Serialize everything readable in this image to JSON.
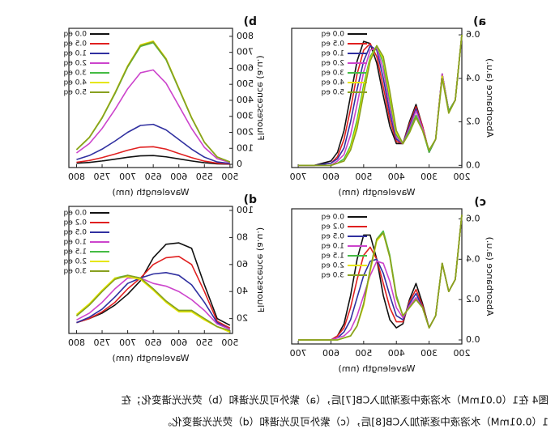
{
  "chart_data": [
    {
      "type": "line",
      "label": "a)",
      "xlabel": "Wavelength (nm)",
      "ylabel": "Absorbance (a.u.)",
      "x": [
        200,
        220,
        240,
        260,
        280,
        300,
        320,
        340,
        360,
        380,
        400,
        420,
        440,
        460,
        480,
        500,
        520,
        540,
        560,
        580,
        600,
        650,
        700
      ],
      "xlim": [
        200,
        720
      ],
      "ylim": [
        -0.01,
        0.63
      ],
      "xticks": [
        200,
        300,
        400,
        500,
        600,
        700
      ],
      "yticks": [
        {
          "value": 0,
          "label": "0.0"
        },
        0.2,
        0.4,
        0.6
      ],
      "series": [
        {
          "name": "0.0 eq",
          "color": "#111111",
          "values": [
            0.6,
            0.3,
            0.25,
            0.42,
            0.12,
            0.06,
            0.18,
            0.28,
            0.2,
            0.1,
            0.1,
            0.18,
            0.32,
            0.47,
            0.56,
            0.57,
            0.48,
            0.32,
            0.16,
            0.06,
            0.02,
            0,
            0
          ]
        },
        {
          "name": "0.5 eq",
          "color": "#e02020",
          "values": [
            0.6,
            0.3,
            0.25,
            0.42,
            0.12,
            0.06,
            0.18,
            0.27,
            0.19,
            0.1,
            0.11,
            0.21,
            0.36,
            0.5,
            0.56,
            0.53,
            0.42,
            0.26,
            0.12,
            0.04,
            0.01,
            0,
            0
          ]
        },
        {
          "name": "1.0 eq",
          "color": "#3030a0",
          "values": [
            0.6,
            0.3,
            0.25,
            0.42,
            0.12,
            0.06,
            0.17,
            0.26,
            0.18,
            0.1,
            0.12,
            0.24,
            0.4,
            0.53,
            0.55,
            0.48,
            0.35,
            0.2,
            0.08,
            0.03,
            0.01,
            0,
            0
          ]
        },
        {
          "name": "2.0 eq",
          "color": "#cc44cc",
          "values": [
            0.6,
            0.3,
            0.25,
            0.42,
            0.12,
            0.06,
            0.17,
            0.25,
            0.17,
            0.1,
            0.13,
            0.27,
            0.44,
            0.54,
            0.53,
            0.43,
            0.28,
            0.14,
            0.05,
            0.02,
            0,
            0,
            0
          ]
        },
        {
          "name": "3.0 eq",
          "color": "#44bb44",
          "values": [
            0.6,
            0.3,
            0.25,
            0.41,
            0.12,
            0.06,
            0.16,
            0.23,
            0.16,
            0.1,
            0.14,
            0.3,
            0.47,
            0.55,
            0.5,
            0.37,
            0.21,
            0.09,
            0.03,
            0.01,
            0,
            0,
            0
          ]
        },
        {
          "name": "4.0 eq",
          "color": "#e6e600",
          "values": [
            0.6,
            0.3,
            0.24,
            0.41,
            0.12,
            0.07,
            0.16,
            0.22,
            0.15,
            0.1,
            0.15,
            0.32,
            0.49,
            0.55,
            0.49,
            0.35,
            0.19,
            0.08,
            0.02,
            0.01,
            0,
            0,
            0
          ]
        },
        {
          "name": "5.0 eq",
          "color": "#88a020",
          "values": [
            0.6,
            0.3,
            0.24,
            0.4,
            0.12,
            0.07,
            0.16,
            0.22,
            0.15,
            0.1,
            0.16,
            0.34,
            0.5,
            0.55,
            0.48,
            0.33,
            0.17,
            0.07,
            0.02,
            0.01,
            0,
            0,
            0
          ]
        }
      ]
    },
    {
      "type": "line",
      "label": "b)",
      "xlabel": "Wavelength (nm)",
      "ylabel": "Fluorescence (a.u.)",
      "x": [
        500,
        525,
        550,
        575,
        600,
        625,
        650,
        675,
        700,
        725,
        750,
        775,
        800
      ],
      "xlim": [
        495,
        815
      ],
      "ylim": [
        -20,
        850
      ],
      "xticks": [
        500,
        550,
        600,
        650,
        700,
        750,
        800
      ],
      "yticks": [
        0,
        100,
        200,
        300,
        400,
        500,
        600,
        700,
        800
      ],
      "series": [
        {
          "name": "0.0 eq",
          "color": "#111111",
          "values": [
            1,
            3,
            10,
            21,
            34,
            47,
            55,
            53,
            44,
            32,
            21,
            12,
            7
          ]
        },
        {
          "name": "0.5 eq",
          "color": "#e02020",
          "values": [
            2,
            7,
            20,
            42,
            68,
            95,
            110,
            107,
            88,
            64,
            42,
            24,
            13
          ]
        },
        {
          "name": "1.0 eq",
          "color": "#3030a0",
          "values": [
            5,
            15,
            45,
            95,
            155,
            215,
            250,
            243,
            200,
            145,
            95,
            55,
            30
          ]
        },
        {
          "name": "2.0 eq",
          "color": "#cc44cc",
          "values": [
            12,
            35,
            106,
            224,
            366,
            507,
            590,
            572,
            472,
            342,
            224,
            130,
            71
          ]
        },
        {
          "name": "3.0 eq",
          "color": "#44bb44",
          "values": [
            15,
            46,
            137,
            289,
            471,
            654,
            760,
            737,
            608,
            441,
            289,
            167,
            91
          ]
        },
        {
          "name": "4.0 eq",
          "color": "#e6e600",
          "values": [
            15,
            46,
            139,
            293,
            477,
            662,
            770,
            747,
            616,
            447,
            293,
            169,
            92
          ]
        },
        {
          "name": "5.0 eq",
          "color": "#88a020",
          "values": [
            15,
            46,
            138,
            291,
            474,
            658,
            765,
            742,
            612,
            444,
            291,
            168,
            92
          ]
        }
      ]
    },
    {
      "type": "line",
      "label": "c)",
      "xlabel": "Wavelength (nm)",
      "ylabel": "Absorbance (a.u.)",
      "x": [
        200,
        220,
        240,
        260,
        280,
        300,
        320,
        340,
        360,
        380,
        400,
        420,
        440,
        460,
        480,
        500,
        520,
        540,
        560,
        580,
        600,
        650,
        700
      ],
      "xlim": [
        200,
        720
      ],
      "ylim": [
        -0.02,
        0.65
      ],
      "xticks": [
        200,
        300,
        400,
        500,
        600,
        700
      ],
      "yticks": [
        {
          "value": 0,
          "label": "0.0"
        },
        0.2,
        0.4,
        0.6
      ],
      "series": [
        {
          "name": "0.0 eq",
          "color": "#111111",
          "values": [
            0.62,
            0.3,
            0.24,
            0.38,
            0.12,
            0.06,
            0.18,
            0.28,
            0.2,
            0.08,
            0.06,
            0.1,
            0.22,
            0.4,
            0.52,
            0.52,
            0.4,
            0.22,
            0.08,
            0.02,
            0,
            0,
            0
          ]
        },
        {
          "name": "0.2 eq",
          "color": "#e02020",
          "values": [
            0.62,
            0.3,
            0.24,
            0.38,
            0.12,
            0.06,
            0.17,
            0.25,
            0.19,
            0.09,
            0.09,
            0.16,
            0.28,
            0.4,
            0.46,
            0.42,
            0.3,
            0.16,
            0.06,
            0.02,
            0,
            0,
            0
          ]
        },
        {
          "name": "0.5 eq",
          "color": "#3030a0",
          "values": [
            0.62,
            0.3,
            0.24,
            0.38,
            0.12,
            0.06,
            0.16,
            0.23,
            0.18,
            0.1,
            0.12,
            0.22,
            0.33,
            0.4,
            0.39,
            0.32,
            0.21,
            0.1,
            0.04,
            0.01,
            0,
            0,
            0
          ]
        },
        {
          "name": "1.0 eq",
          "color": "#cc44cc",
          "values": [
            0.62,
            0.3,
            0.24,
            0.38,
            0.12,
            0.06,
            0.16,
            0.21,
            0.17,
            0.11,
            0.16,
            0.29,
            0.38,
            0.39,
            0.32,
            0.22,
            0.12,
            0.05,
            0.02,
            0.01,
            0,
            0,
            0
          ]
        },
        {
          "name": "1.5 eq",
          "color": "#44bb44",
          "values": [
            0.62,
            0.3,
            0.24,
            0.38,
            0.12,
            0.06,
            0.16,
            0.2,
            0.16,
            0.12,
            0.22,
            0.42,
            0.54,
            0.5,
            0.35,
            0.18,
            0.07,
            0.02,
            0.01,
            0,
            0,
            0,
            0
          ]
        },
        {
          "name": "2.0 eq",
          "color": "#e6e600",
          "values": [
            0.62,
            0.3,
            0.24,
            0.38,
            0.12,
            0.06,
            0.16,
            0.2,
            0.16,
            0.12,
            0.21,
            0.41,
            0.53,
            0.49,
            0.34,
            0.17,
            0.07,
            0.02,
            0.01,
            0,
            0,
            0,
            0
          ]
        },
        {
          "name": "3.0 eq",
          "color": "#88a020",
          "values": [
            0.62,
            0.3,
            0.24,
            0.38,
            0.12,
            0.06,
            0.16,
            0.2,
            0.16,
            0.12,
            0.21,
            0.41,
            0.53,
            0.5,
            0.35,
            0.18,
            0.07,
            0.02,
            0.01,
            0,
            0,
            0,
            0
          ]
        }
      ]
    },
    {
      "type": "line",
      "label": "d)",
      "xlabel": "Wavelength (nm)",
      "ylabel": "Fluorescence (a.u.)",
      "x": [
        500,
        525,
        550,
        575,
        600,
        625,
        650,
        675,
        700,
        725,
        750,
        775,
        800
      ],
      "xlim": [
        495,
        815
      ],
      "ylim": [
        9,
        103
      ],
      "xticks": [
        500,
        550,
        600,
        650,
        700,
        750,
        800
      ],
      "yticks": [
        20,
        40,
        60,
        80,
        100
      ],
      "series": [
        {
          "name": "0.0 eq",
          "color": "#111111",
          "values": [
            15,
            20,
            45,
            72,
            76,
            75,
            65,
            48,
            38,
            30,
            24,
            20,
            17
          ]
        },
        {
          "name": "0.2 eq",
          "color": "#e02020",
          "values": [
            13,
            18,
            40,
            60,
            66,
            65,
            60,
            50,
            42,
            32,
            25,
            20,
            17
          ]
        },
        {
          "name": "0.5 eq",
          "color": "#3030a0",
          "values": [
            12,
            17,
            32,
            45,
            52,
            54,
            53,
            50,
            46,
            36,
            27,
            21,
            17
          ]
        },
        {
          "name": "1.0 eq",
          "color": "#cc44cc",
          "values": [
            12,
            16,
            26,
            34,
            40,
            44,
            46,
            50,
            50,
            42,
            32,
            24,
            19
          ]
        },
        {
          "name": "1.5 eq",
          "color": "#44bb44",
          "values": [
            11,
            14,
            20,
            26,
            26,
            33,
            42,
            50,
            52,
            50,
            40,
            30,
            22
          ]
        },
        {
          "name": "2.0 eq",
          "color": "#e6e600",
          "values": [
            10,
            14,
            19,
            25,
            25,
            32,
            41,
            49,
            51,
            50,
            41,
            31,
            23
          ]
        },
        {
          "name": "3.0 eq",
          "color": "#88a020",
          "values": [
            11,
            14,
            20,
            26,
            26,
            33,
            42,
            50,
            52,
            49,
            40,
            30,
            22
          ]
        }
      ]
    }
  ],
  "caption": {
    "lines": [
      "图4 在1（0.01mM）水溶液中逐渐加入CB[7]后，（a）紫外可见光谱和（b）荧光光谱变化；在",
      "1（0.01mM）水溶液中逐渐加入CB[8]后，（c）紫外可见光谱和（d）荧光光谱变化。"
    ]
  }
}
